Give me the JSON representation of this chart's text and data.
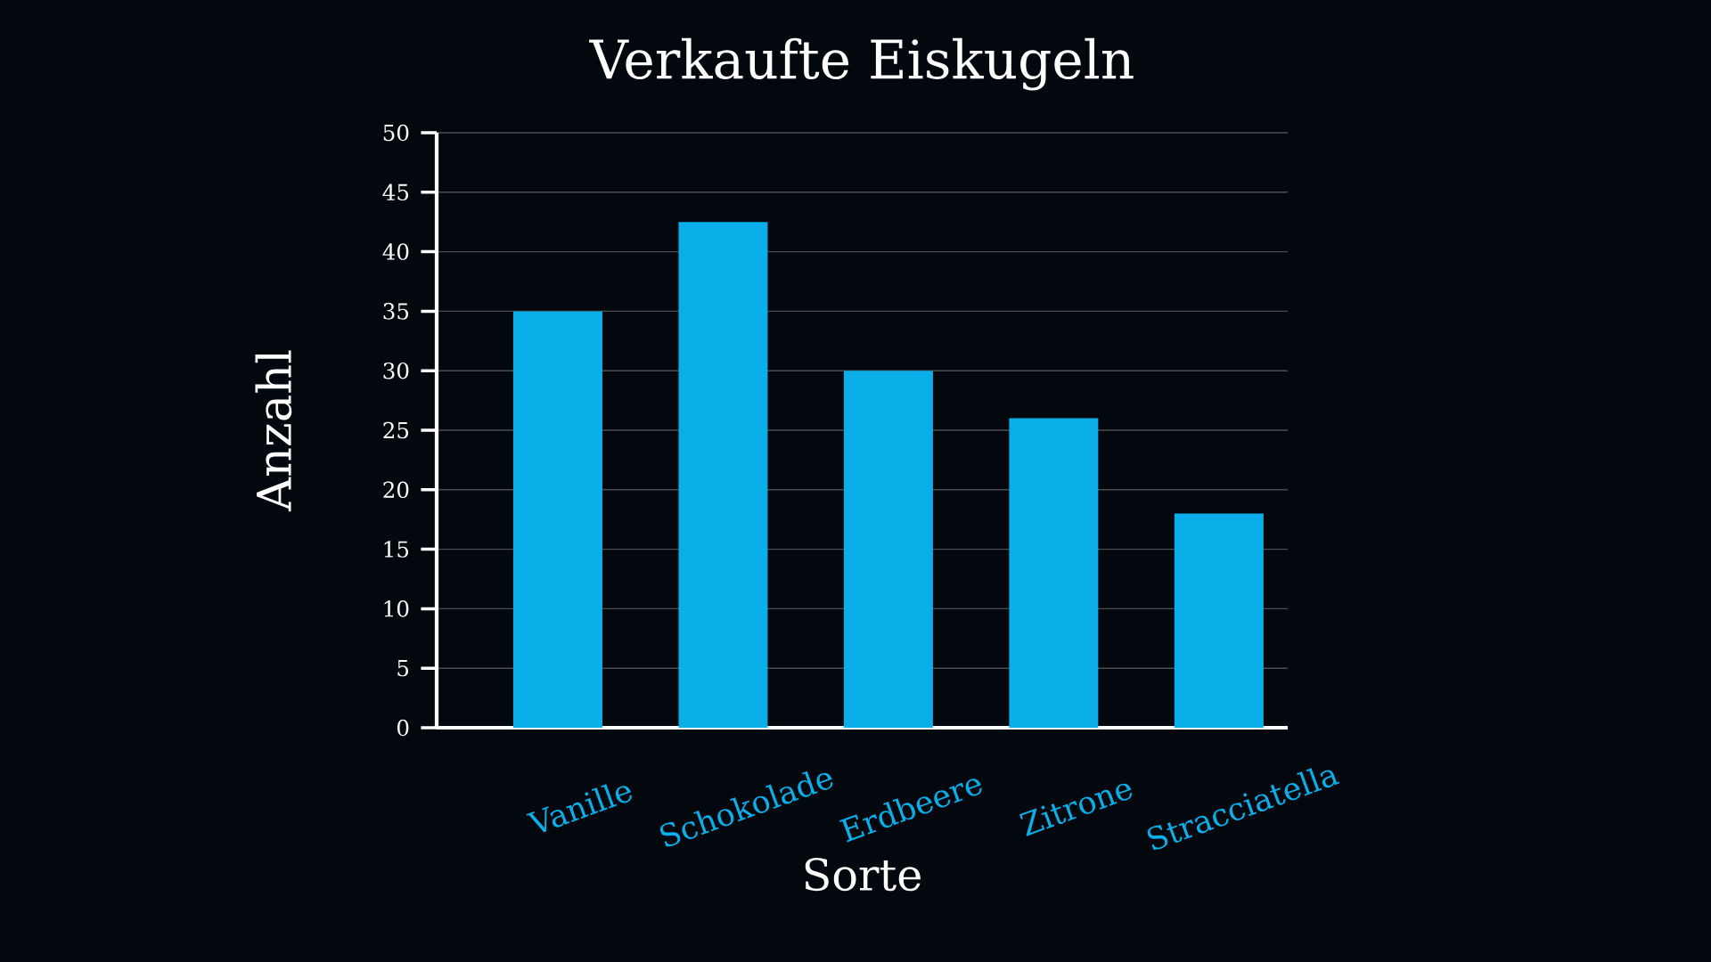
{
  "chart_data": {
    "type": "bar",
    "title": "Verkaufte Eiskugeln",
    "xlabel": "Sorte",
    "ylabel": "Anzahl",
    "categories": [
      "Vanille",
      "Schokolade",
      "Erdbeere",
      "Zitrone",
      "Stracciatella"
    ],
    "values": [
      35,
      42.5,
      30,
      26,
      18
    ],
    "color": "#0aaee8",
    "ylim": [
      0,
      50
    ],
    "yticks": [
      0,
      5,
      10,
      15,
      20,
      25,
      30,
      35,
      40,
      45,
      50
    ],
    "grid": "y"
  }
}
